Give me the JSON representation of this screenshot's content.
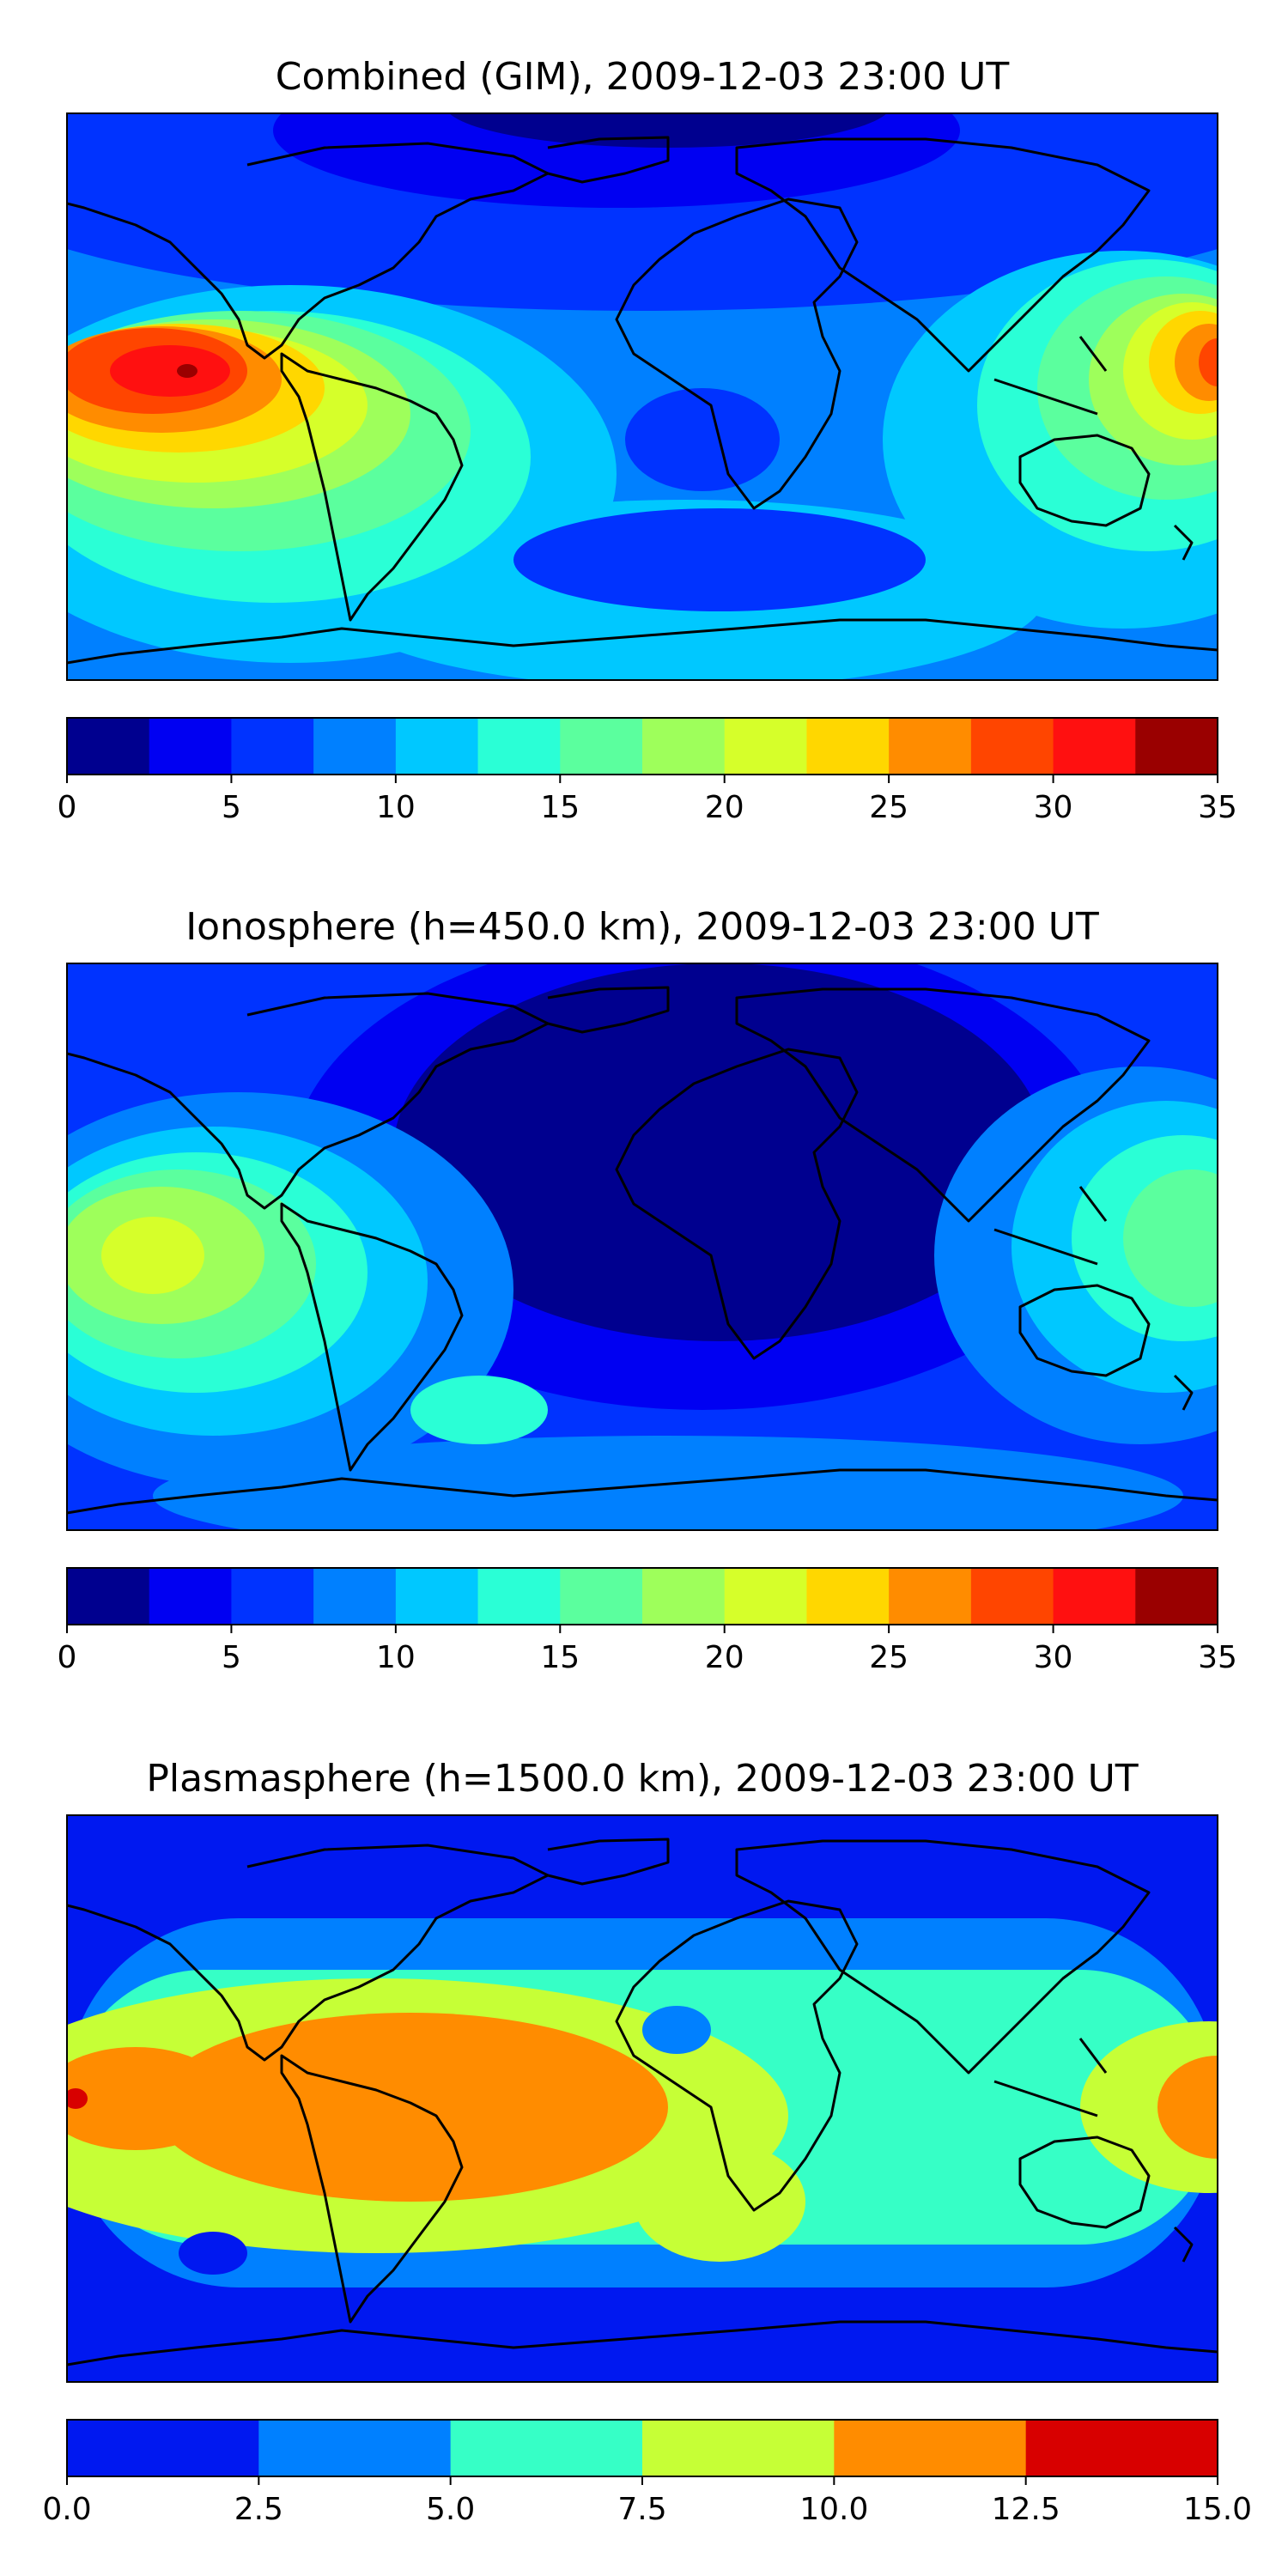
{
  "panels": [
    {
      "title": "Combined (GIM), 2009-12-03 23:00 UT",
      "colorbar": {
        "colors": [
          "#00008f",
          "#0000f2",
          "#0033ff",
          "#0080ff",
          "#00c8ff",
          "#2affd6",
          "#5bff9e",
          "#9eff5b",
          "#d6ff2a",
          "#ffd700",
          "#ff8c00",
          "#ff4500",
          "#ff1010",
          "#9a0000"
        ],
        "boundaries": [
          0,
          2.5,
          5,
          7.5,
          10,
          12.5,
          15,
          17.5,
          20,
          22.5,
          25,
          27.5,
          30,
          32.5,
          35
        ],
        "ticks": [
          "0",
          "5",
          "10",
          "15",
          "20",
          "25",
          "30",
          "35"
        ]
      }
    },
    {
      "title": "Ionosphere  (h=450.0 km), 2009-12-03 23:00 UT",
      "colorbar": {
        "colors": [
          "#00008f",
          "#0000f2",
          "#0033ff",
          "#0080ff",
          "#00c8ff",
          "#2affd6",
          "#5bff9e",
          "#9eff5b",
          "#d6ff2a",
          "#ffd700",
          "#ff8c00",
          "#ff4500",
          "#ff1010",
          "#9a0000"
        ],
        "boundaries": [
          0,
          2.5,
          5,
          7.5,
          10,
          12.5,
          15,
          17.5,
          20,
          22.5,
          25,
          27.5,
          30,
          32.5,
          35
        ],
        "ticks": [
          "0",
          "5",
          "10",
          "15",
          "20",
          "25",
          "30",
          "35"
        ]
      }
    },
    {
      "title": "Plasmasphere (h=1500.0 km), 2009-12-03 23:00 UT",
      "colorbar": {
        "colors": [
          "#0018f0",
          "#0080ff",
          "#36ffc6",
          "#c6ff36",
          "#ff8c00",
          "#d80000"
        ],
        "boundaries": [
          0,
          2.5,
          5,
          7.5,
          10,
          12.5,
          15
        ],
        "ticks": [
          "0.0",
          "2.5",
          "5.0",
          "7.5",
          "10.0",
          "12.5",
          "15.0"
        ]
      }
    }
  ]
}
